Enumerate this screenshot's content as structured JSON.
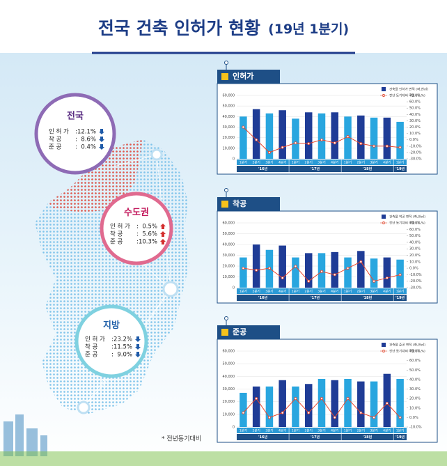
{
  "header": {
    "title": "전국 건축 인허가 현황",
    "subtitle": "(19년 1분기)"
  },
  "regions": [
    {
      "name": "전국",
      "items": [
        {
          "label": "인 허 가",
          "value": "12.1%",
          "trend": "down"
        },
        {
          "label": "착    공",
          "value": "8.6%",
          "trend": "down"
        },
        {
          "label": "준    공",
          "value": "0.4%",
          "trend": "down"
        }
      ]
    },
    {
      "name": "수도권",
      "items": [
        {
          "label": "인 허 가",
          "value": "0.5%",
          "trend": "up"
        },
        {
          "label": "착    공",
          "value": "5.6%",
          "trend": "up"
        },
        {
          "label": "준    공",
          "value": "10.3%",
          "trend": "up"
        }
      ]
    },
    {
      "name": "지방",
      "items": [
        {
          "label": "인 허 가",
          "value": "23.2%",
          "trend": "down"
        },
        {
          "label": "착    공",
          "value": "11.5%",
          "trend": "down"
        },
        {
          "label": "준    공",
          "value": "9.0%",
          "trend": "down"
        }
      ]
    }
  ],
  "footnote": "* 전년동기대비",
  "chart_data": [
    {
      "type": "bar-line",
      "title": "인허가",
      "categories": [
        "1분기",
        "2분기",
        "3분기",
        "4분기",
        "1분기",
        "2분기",
        "3분기",
        "4분기",
        "1분기",
        "2분기",
        "3분기",
        "4분기",
        "1분기"
      ],
      "groups": [
        "'16년",
        "'17년",
        "'18년",
        "'19년"
      ],
      "series": [
        {
          "name": "건축물 인허가 면적 (좌,천㎡)",
          "color": "#1f3c96",
          "light_color": "#29a6df",
          "values": [
            40000,
            47000,
            43000,
            46000,
            38000,
            44000,
            43000,
            44000,
            40000,
            41000,
            39000,
            39000,
            35000
          ]
        },
        {
          "name": "전년 동기대비 비율 (우,%)",
          "color": "#e8462c",
          "axis": "y2",
          "values": [
            20,
            0,
            -20,
            -12,
            -5,
            -6,
            0,
            -5,
            5,
            -6,
            -10,
            -10,
            -12
          ]
        }
      ],
      "ylim": [
        0,
        60000
      ],
      "yticks": [
        0,
        {
          "value": 10000,
          "label": "10,000"
        },
        {
          "value": 20000,
          "label": "20,000"
        },
        {
          "value": 30000,
          "label": "30,000"
        },
        {
          "value": 40000,
          "label": "40,000"
        },
        {
          "value": 50000,
          "label": "50,000"
        },
        {
          "value": 60000,
          "label": "60,000"
        }
      ],
      "y2lim": [
        -30,
        70
      ],
      "y2ticks": [
        {
          "value": -30,
          "label": "-30.0%"
        },
        {
          "value": -20,
          "label": "-20.0%"
        },
        {
          "value": -10,
          "label": "-10.0%"
        },
        {
          "value": 0,
          "label": "0.0%"
        },
        {
          "value": 10,
          "label": "10.0%"
        },
        {
          "value": 20,
          "label": "20.0%"
        },
        {
          "value": 30,
          "label": "30.0%"
        },
        {
          "value": 40,
          "label": "40.0%"
        },
        {
          "value": 50,
          "label": "50.0%"
        },
        {
          "value": 60,
          "label": "60.0%"
        },
        {
          "value": 70,
          "label": "70.0%"
        }
      ],
      "grid": true
    },
    {
      "type": "bar-line",
      "title": "착공",
      "categories": [
        "1분기",
        "2분기",
        "3분기",
        "4분기",
        "1분기",
        "2분기",
        "3분기",
        "4분기",
        "1분기",
        "2분기",
        "3분기",
        "4분기",
        "1분기"
      ],
      "groups": [
        "'16년",
        "'17년",
        "'18년",
        "'19년"
      ],
      "series": [
        {
          "name": "건축물 착공 면적 (좌,천㎡)",
          "color": "#1f3c96",
          "light_color": "#29a6df",
          "values": [
            28000,
            40000,
            35000,
            39000,
            28000,
            32000,
            32000,
            33000,
            28000,
            34000,
            27000,
            28000,
            26000
          ]
        },
        {
          "name": "전년 동기대비 비율 (우,%)",
          "color": "#e8462c",
          "axis": "y2",
          "values": [
            0,
            -3,
            0,
            -15,
            3,
            -20,
            -5,
            -10,
            0,
            10,
            -20,
            -15,
            -10
          ]
        }
      ],
      "ylim": [
        0,
        60000
      ],
      "yticks": [
        0,
        {
          "value": 10000,
          "label": "10,000"
        },
        {
          "value": 20000,
          "label": "20,000"
        },
        {
          "value": 30000,
          "label": "30,000"
        },
        {
          "value": 40000,
          "label": "40,000"
        },
        {
          "value": 50000,
          "label": "50,000"
        },
        {
          "value": 60000,
          "label": "60,000"
        }
      ],
      "y2lim": [
        -30,
        70
      ],
      "y2ticks": [
        {
          "value": -30,
          "label": "-30.0%"
        },
        {
          "value": -20,
          "label": "-20.0%"
        },
        {
          "value": -10,
          "label": "-10.0%"
        },
        {
          "value": 0,
          "label": "0.0%"
        },
        {
          "value": 10,
          "label": "10.0%"
        },
        {
          "value": 20,
          "label": "20.0%"
        },
        {
          "value": 30,
          "label": "30.0%"
        },
        {
          "value": 40,
          "label": "40.0%"
        },
        {
          "value": 50,
          "label": "50.0%"
        },
        {
          "value": 60,
          "label": "60.0%"
        },
        {
          "value": 70,
          "label": "70.0%"
        }
      ],
      "grid": true
    },
    {
      "type": "bar-line",
      "title": "준공",
      "categories": [
        "1분기",
        "2분기",
        "3분기",
        "4분기",
        "1분기",
        "2분기",
        "3분기",
        "4분기",
        "1분기",
        "2분기",
        "3분기",
        "4분기",
        "1분기"
      ],
      "groups": [
        "'16년",
        "'17년",
        "'18년",
        "'19년"
      ],
      "series": [
        {
          "name": "건축물 준공 면적 (좌,천㎡)",
          "color": "#1f3c96",
          "light_color": "#29a6df",
          "values": [
            27000,
            32000,
            32000,
            37000,
            32000,
            34000,
            38000,
            37000,
            38000,
            36000,
            36000,
            42000,
            38000
          ]
        },
        {
          "name": "전년 동기대비 비율 (우,%)",
          "color": "#e8462c",
          "axis": "y2",
          "values": [
            5,
            20,
            0,
            5,
            20,
            5,
            20,
            0,
            20,
            5,
            0,
            15,
            0
          ]
        }
      ],
      "ylim": [
        0,
        60000
      ],
      "yticks": [
        0,
        {
          "value": 10000,
          "label": "10,000"
        },
        {
          "value": 20000,
          "label": "20,000"
        },
        {
          "value": 30000,
          "label": "30,000"
        },
        {
          "value": 40000,
          "label": "40,000"
        },
        {
          "value": 50000,
          "label": "50,000"
        },
        {
          "value": 60000,
          "label": "60,000"
        }
      ],
      "y2lim": [
        -10,
        70
      ],
      "y2ticks": [
        {
          "value": -10,
          "label": "-10.0%"
        },
        {
          "value": 0,
          "label": "0.0%"
        },
        {
          "value": 10,
          "label": "10.0%"
        },
        {
          "value": 20,
          "label": "20.0%"
        },
        {
          "value": 30,
          "label": "30.0%"
        },
        {
          "value": 40,
          "label": "40.0%"
        },
        {
          "value": 50,
          "label": "50.0%"
        },
        {
          "value": 60,
          "label": "60.0%"
        },
        {
          "value": 70,
          "label": "70.0%"
        }
      ],
      "grid": true
    }
  ]
}
